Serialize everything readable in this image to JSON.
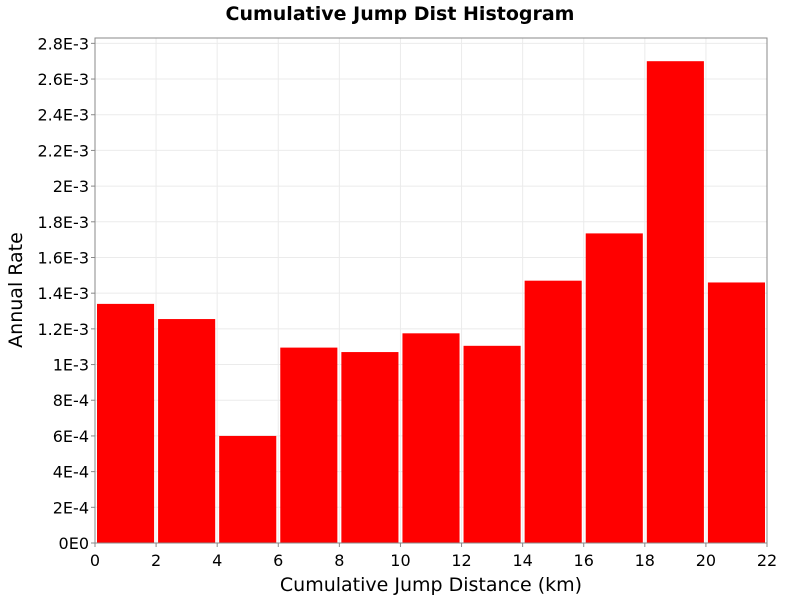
{
  "chart_data": {
    "type": "bar",
    "title": "Cumulative Jump Dist Histogram",
    "xlabel": "Cumulative Jump Distance (km)",
    "ylabel": "Annual Rate",
    "xlim": [
      0,
      22
    ],
    "ylim": [
      0,
      0.00283
    ],
    "grid": true,
    "legend": "none",
    "bar_color": "#ff0000",
    "x_ticks": [
      0,
      2,
      4,
      6,
      8,
      10,
      12,
      14,
      16,
      18,
      20,
      22
    ],
    "x_tick_labels": [
      "0",
      "2",
      "4",
      "6",
      "8",
      "10",
      "12",
      "14",
      "16",
      "18",
      "20",
      "22"
    ],
    "y_ticks": [
      0,
      0.0002,
      0.0004,
      0.0006,
      0.0008,
      0.001,
      0.0012,
      0.0014,
      0.0016,
      0.0018,
      0.002,
      0.0022,
      0.0024,
      0.0026,
      0.0028
    ],
    "y_tick_labels": [
      "0E0",
      "2E-4",
      "4E-4",
      "6E-4",
      "8E-4",
      "1E-3",
      "1.2E-3",
      "1.4E-3",
      "1.6E-3",
      "1.8E-3",
      "2E-3",
      "2.2E-3",
      "2.4E-3",
      "2.6E-3",
      "2.8E-3"
    ],
    "bin_width": 2,
    "bins": [
      {
        "x0": 0,
        "x1": 2,
        "value": 0.00134
      },
      {
        "x0": 2,
        "x1": 4,
        "value": 0.001255
      },
      {
        "x0": 4,
        "x1": 6,
        "value": 0.0006
      },
      {
        "x0": 6,
        "x1": 8,
        "value": 0.001095
      },
      {
        "x0": 8,
        "x1": 10,
        "value": 0.00107
      },
      {
        "x0": 10,
        "x1": 12,
        "value": 0.001175
      },
      {
        "x0": 12,
        "x1": 14,
        "value": 0.001105
      },
      {
        "x0": 14,
        "x1": 16,
        "value": 0.00147
      },
      {
        "x0": 16,
        "x1": 18,
        "value": 0.001735
      },
      {
        "x0": 18,
        "x1": 20,
        "value": 0.0027
      },
      {
        "x0": 20,
        "x1": 22,
        "value": 0.00146
      }
    ]
  }
}
